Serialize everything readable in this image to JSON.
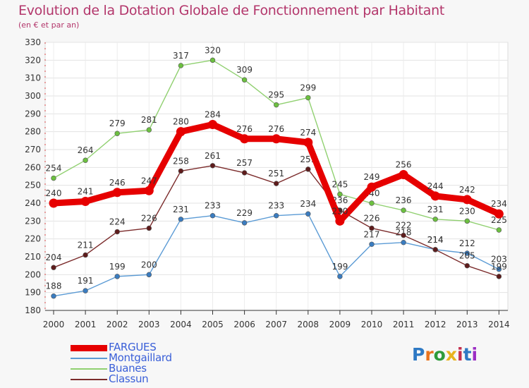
{
  "title": "Evolution de la Dotation Globale de Fonctionnement par Habitant",
  "subtitle": "(en € et par an)",
  "logo": {
    "text": "Proxiti",
    "colors": [
      "#2e79c4",
      "#e8731e",
      "#2e9b3a",
      "#e8b31e",
      "#c42e4e",
      "#2e79c4",
      "#9b2ec4"
    ]
  },
  "chart_data": {
    "type": "line",
    "x": [
      "2000",
      "2001",
      "2002",
      "2003",
      "2004",
      "2005",
      "2006",
      "2007",
      "2008",
      "2009",
      "2010",
      "2011",
      "2012",
      "2013",
      "2014"
    ],
    "ylim": [
      180,
      330
    ],
    "yticks": [
      "180",
      "190",
      "200",
      "210",
      "220",
      "230",
      "240",
      "250",
      "260",
      "270",
      "280",
      "290",
      "300",
      "310",
      "320",
      "330"
    ],
    "grid": true,
    "legend_position": "bottom-left",
    "series": [
      {
        "name": "Montgaillard",
        "color": "#5b9bd5",
        "point_color": "#3a7cc0",
        "thick": false,
        "values": [
          188,
          191,
          199,
          200,
          231,
          233,
          229,
          233,
          234,
          199,
          217,
          218,
          214,
          212,
          203
        ]
      },
      {
        "name": "Buanes",
        "color": "#90d070",
        "point_color": "#6cc040",
        "thick": false,
        "values": [
          254,
          264,
          279,
          281,
          317,
          320,
          309,
          295,
          299,
          245,
          240,
          236,
          231,
          230,
          225
        ]
      },
      {
        "name": "Classun",
        "color": "#7b2b2b",
        "point_color": "#5e1c1c",
        "thick": false,
        "values": [
          204,
          211,
          224,
          226,
          258,
          261,
          257,
          251,
          259,
          236,
          226,
          222,
          214,
          205,
          199
        ]
      },
      {
        "name": "FARGUES",
        "color": "#e60000",
        "point_color": "#e60000",
        "thick": true,
        "values": [
          240,
          241,
          246,
          247,
          280,
          284,
          276,
          276,
          274,
          230,
          249,
          256,
          244,
          242,
          234
        ]
      }
    ],
    "legend_order": [
      "FARGUES",
      "Montgaillard",
      "Buanes",
      "Classun"
    ]
  }
}
